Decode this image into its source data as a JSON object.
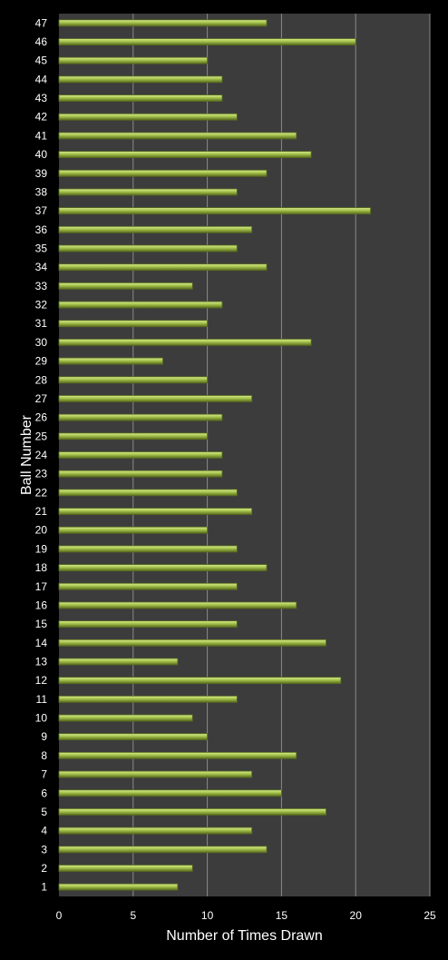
{
  "chart_data": {
    "type": "bar",
    "orientation": "horizontal",
    "xlabel": "Number of Times Drawn",
    "ylabel": "Ball Number",
    "xlim": [
      0,
      25
    ],
    "x_ticks": [
      "0",
      "5",
      "10",
      "15",
      "20",
      "25"
    ],
    "grid": "vertical",
    "categories": [
      "1",
      "2",
      "3",
      "4",
      "5",
      "6",
      "7",
      "8",
      "9",
      "10",
      "11",
      "12",
      "13",
      "14",
      "15",
      "16",
      "17",
      "18",
      "19",
      "20",
      "21",
      "22",
      "23",
      "24",
      "25",
      "26",
      "27",
      "28",
      "29",
      "30",
      "31",
      "32",
      "33",
      "34",
      "35",
      "36",
      "37",
      "38",
      "39",
      "40",
      "41",
      "42",
      "43",
      "44",
      "45",
      "46",
      "47"
    ],
    "values": [
      8,
      9,
      14,
      13,
      18,
      15,
      13,
      16,
      10,
      9,
      12,
      19,
      8,
      18,
      12,
      16,
      12,
      14,
      12,
      10,
      13,
      12,
      11,
      11,
      10,
      11,
      13,
      10,
      7,
      17,
      10,
      11,
      9,
      14,
      12,
      13,
      21,
      12,
      14,
      17,
      16,
      12,
      11,
      11,
      10,
      20,
      14
    ],
    "colors": {
      "background": "#000000",
      "plot_area": "#3c3c3c",
      "gridline": "#8a8a8a",
      "bar_fill": "#a4c04a",
      "bar_highlight": "#d8ee90",
      "bar_edge": "#586b1e",
      "text": "#ffffff"
    }
  }
}
